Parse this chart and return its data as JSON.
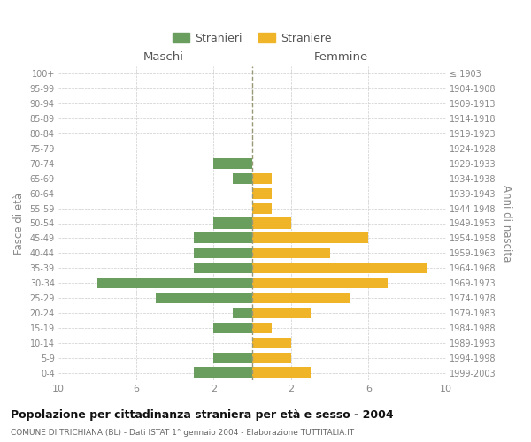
{
  "age_groups": [
    "0-4",
    "5-9",
    "10-14",
    "15-19",
    "20-24",
    "25-29",
    "30-34",
    "35-39",
    "40-44",
    "45-49",
    "50-54",
    "55-59",
    "60-64",
    "65-69",
    "70-74",
    "75-79",
    "80-84",
    "85-89",
    "90-94",
    "95-99",
    "100+"
  ],
  "birth_years": [
    "1999-2003",
    "1994-1998",
    "1989-1993",
    "1984-1988",
    "1979-1983",
    "1974-1978",
    "1969-1973",
    "1964-1968",
    "1959-1963",
    "1954-1958",
    "1949-1953",
    "1944-1948",
    "1939-1943",
    "1934-1938",
    "1929-1933",
    "1924-1928",
    "1919-1923",
    "1914-1918",
    "1909-1913",
    "1904-1908",
    "≤ 1903"
  ],
  "maschi": [
    3,
    2,
    0,
    2,
    1,
    5,
    8,
    3,
    3,
    3,
    2,
    0,
    0,
    1,
    2,
    0,
    0,
    0,
    0,
    0,
    0
  ],
  "femmine": [
    3,
    2,
    2,
    1,
    3,
    5,
    7,
    9,
    4,
    6,
    2,
    1,
    1,
    1,
    0,
    0,
    0,
    0,
    0,
    0,
    0
  ],
  "color_maschi": "#6a9e5e",
  "color_femmine": "#f0b429",
  "xlim": 10,
  "title": "Popolazione per cittadinanza straniera per età e sesso - 2004",
  "subtitle": "COMUNE DI TRICHIANA (BL) - Dati ISTAT 1° gennaio 2004 - Elaborazione TUTTITALIA.IT",
  "ylabel_left": "Fasce di età",
  "ylabel_right": "Anni di nascita",
  "label_maschi": "Stranieri",
  "label_femmine": "Straniere",
  "header_left": "Maschi",
  "header_right": "Femmine",
  "background_color": "#ffffff",
  "grid_color": "#cccccc"
}
